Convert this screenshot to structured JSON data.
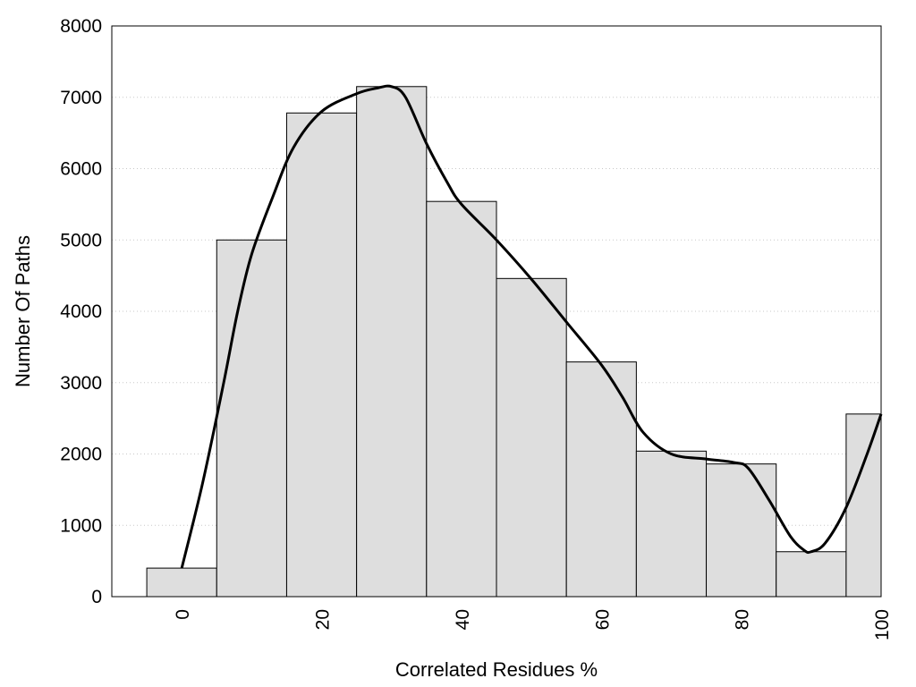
{
  "chart_data": {
    "type": "bar",
    "xlabel": "Correlated Residues %",
    "ylabel": "Number Of Paths",
    "xlim": [
      -10,
      100
    ],
    "ylim": [
      0,
      8000
    ],
    "x_ticks": [
      0,
      20,
      40,
      60,
      80,
      100
    ],
    "y_ticks": [
      0,
      1000,
      2000,
      3000,
      4000,
      5000,
      6000,
      7000,
      8000
    ],
    "grid": "horizontal dotted",
    "bins": [
      {
        "center": 0,
        "value": 400
      },
      {
        "center": 10,
        "value": 5000
      },
      {
        "center": 20,
        "value": 6780
      },
      {
        "center": 30,
        "value": 7150
      },
      {
        "center": 40,
        "value": 5540
      },
      {
        "center": 50,
        "value": 4460
      },
      {
        "center": 60,
        "value": 3290
      },
      {
        "center": 70,
        "value": 2040
      },
      {
        "center": 80,
        "value": 1860
      },
      {
        "center": 90,
        "value": 630
      },
      {
        "center": 100,
        "value": 2560
      }
    ],
    "bin_width": 10,
    "series": [
      {
        "type": "smooth-line",
        "x": [
          0,
          3,
          6,
          8,
          10,
          13,
          16,
          20,
          25,
          28,
          30,
          32,
          35,
          38,
          40,
          45,
          50,
          55,
          60,
          63,
          66,
          70,
          75,
          79,
          81,
          84,
          87,
          89,
          90,
          92,
          95,
          98,
          100
        ],
        "y": [
          400,
          1600,
          3000,
          4000,
          4800,
          5600,
          6300,
          6800,
          7050,
          7130,
          7150,
          7000,
          6350,
          5800,
          5500,
          5000,
          4450,
          3850,
          3250,
          2800,
          2300,
          2000,
          1930,
          1880,
          1800,
          1350,
          850,
          650,
          630,
          750,
          1250,
          2000,
          2560
        ],
        "color": "#000000"
      }
    ],
    "bar_color": "#dedede"
  }
}
